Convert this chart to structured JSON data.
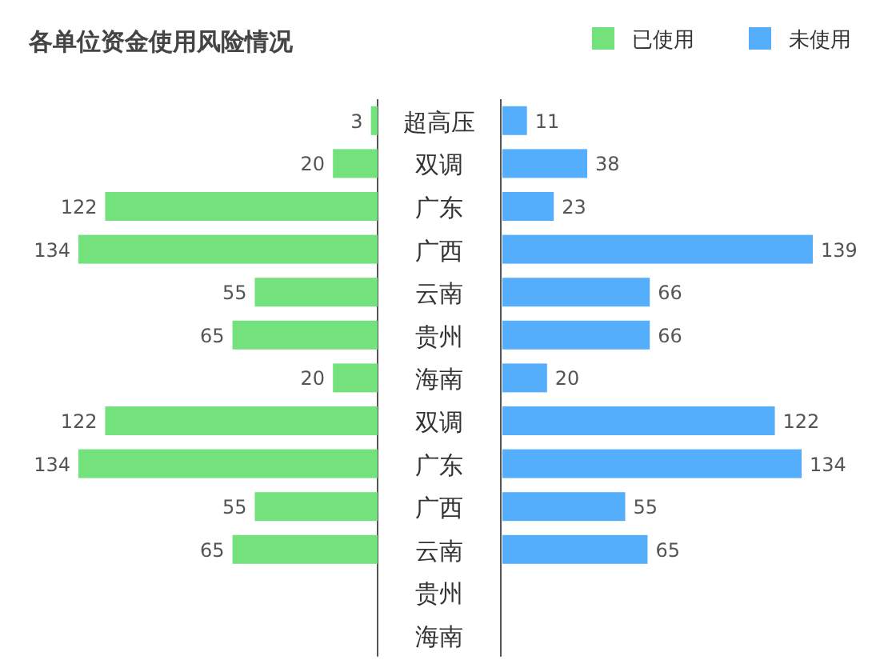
{
  "chart_data": [
    {
      "type": "bar",
      "orientation": "horizontal",
      "title": "各单位资金使用风险情况",
      "categories": [
        "超高压",
        "双调",
        "广东",
        "广西",
        "云南",
        "贵州",
        "海南",
        "双调",
        "广东",
        "广西",
        "云南",
        "贵州",
        "海南"
      ],
      "series": [
        {
          "name": "已使用",
          "color": "#73e27c",
          "values": [
            3,
            20,
            122,
            134,
            55,
            65,
            20,
            122,
            134,
            55,
            65,
            null,
            null
          ]
        }
      ],
      "data_labels": true,
      "legend": "top right"
    },
    {
      "type": "bar",
      "orientation": "horizontal",
      "categories": [
        null,
        null,
        null,
        null,
        null,
        null,
        null,
        null,
        null,
        null,
        null,
        null,
        null
      ],
      "series": [
        {
          "name": "未使用",
          "color": "#55aefc",
          "values": [
            11,
            38,
            23,
            139,
            66,
            66,
            20,
            122,
            134,
            55,
            65,
            null,
            null
          ]
        }
      ],
      "data_labels": true,
      "legend": "top right"
    }
  ]
}
